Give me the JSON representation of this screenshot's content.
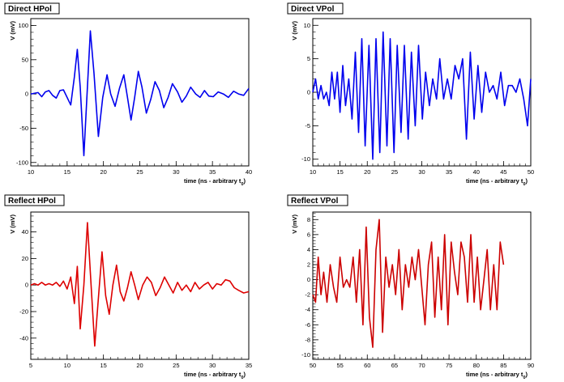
{
  "chart_data": [
    {
      "type": "line",
      "title": "Direct HPol",
      "xlabel": "time (ns - arbitrary t",
      "xlabel_sub": "0",
      "xlabel_close": ")",
      "ylabel": "V (mV)",
      "xlim": [
        10,
        40
      ],
      "ylim": [
        -105,
        110
      ],
      "xticks": [
        10,
        15,
        20,
        25,
        30,
        35,
        40
      ],
      "yticks": [
        -100,
        -50,
        0,
        50,
        100
      ],
      "color": "#0000ee",
      "series": [
        {
          "x": [
            10,
            11,
            11.5,
            12,
            12.5,
            13,
            13.5,
            14,
            14.5,
            15,
            15.5,
            16,
            16.4,
            16.8,
            17.3,
            17.7,
            18.2,
            18.7,
            19.3,
            19.9,
            20.5,
            21.0,
            21.6,
            22.2,
            22.8,
            23.3,
            23.8,
            24.3,
            24.8,
            25.3,
            25.9,
            26.5,
            27.1,
            27.7,
            28.3,
            28.9,
            29.5,
            30.2,
            30.8,
            31.4,
            32.0,
            32.7,
            33.3,
            33.9,
            34.5,
            35.1,
            35.8,
            36.5,
            37.2,
            37.9,
            38.6,
            39.3,
            40
          ],
          "y": [
            0,
            2,
            -4,
            3,
            5,
            -2,
            -6,
            5,
            6,
            -5,
            -16,
            25,
            65,
            10,
            -90,
            -10,
            92,
            30,
            -62,
            -5,
            28,
            0,
            -18,
            8,
            28,
            -5,
            -38,
            -5,
            33,
            10,
            -28,
            -8,
            18,
            5,
            -20,
            -5,
            15,
            3,
            -12,
            -3,
            10,
            0,
            -5,
            5,
            -3,
            -4,
            3,
            0,
            -5,
            4,
            0,
            -2,
            8
          ]
        }
      ]
    },
    {
      "type": "line",
      "title": "Direct VPol",
      "xlabel": "time (ns - arbitrary t",
      "xlabel_sub": "0",
      "xlabel_close": ")",
      "ylabel": "V (mV)",
      "xlim": [
        10,
        50
      ],
      "ylim": [
        -11,
        11
      ],
      "xticks": [
        10,
        15,
        20,
        25,
        30,
        35,
        40,
        45,
        50
      ],
      "yticks": [
        -10,
        -5,
        0,
        5,
        10
      ],
      "color": "#0000ee",
      "series": [
        {
          "x": [
            10,
            10.5,
            11,
            11.5,
            12,
            12.5,
            13,
            13.5,
            14,
            14.5,
            15,
            15.5,
            16,
            16.6,
            17.2,
            17.8,
            18.4,
            19.0,
            19.6,
            20.3,
            21.0,
            21.6,
            22.3,
            22.9,
            23.6,
            24.2,
            24.9,
            25.5,
            26.2,
            26.8,
            27.5,
            28.1,
            28.8,
            29.4,
            30.1,
            30.7,
            31.4,
            32.0,
            32.7,
            33.3,
            34.0,
            34.7,
            35.4,
            36.1,
            36.8,
            37.5,
            38.2,
            38.9,
            39.6,
            40.3,
            41.0,
            41.7,
            42.4,
            43.1,
            43.8,
            44.5,
            45.2,
            45.9,
            46.6,
            47.3,
            48.0,
            48.7,
            49.4,
            50
          ],
          "y": [
            0,
            2,
            -1,
            1,
            -1,
            0,
            -2,
            3,
            -1,
            3,
            -3,
            4,
            -2,
            2,
            -4,
            6,
            -6,
            8,
            -8,
            7,
            -10,
            8,
            -9,
            9,
            -8,
            8,
            -9,
            7,
            -6,
            7,
            -7,
            6,
            -5,
            7,
            -4,
            3,
            -2,
            2,
            -1,
            5,
            -1,
            2,
            -1,
            4,
            2,
            5,
            -7,
            6,
            -4,
            4,
            -3,
            3,
            0,
            1,
            -1,
            3,
            -2,
            1,
            1,
            0,
            2,
            -1,
            -5,
            2
          ]
        }
      ]
    },
    {
      "type": "line",
      "title": "Reflect HPol",
      "xlabel": "time (ns - arbitrary t",
      "xlabel_sub": "0",
      "xlabel_close": ")",
      "ylabel": "V (mV)",
      "xlim": [
        5,
        35
      ],
      "ylim": [
        -56,
        55
      ],
      "xticks": [
        5,
        10,
        15,
        20,
        25,
        30,
        35
      ],
      "yticks": [
        -40,
        -20,
        0,
        20,
        40
      ],
      "color": "#dd0000",
      "series": [
        {
          "x": [
            5,
            5.5,
            6,
            6.5,
            7,
            7.5,
            8,
            8.5,
            9,
            9.5,
            10,
            10.5,
            11.0,
            11.4,
            11.8,
            12.3,
            12.8,
            13.3,
            13.8,
            14.3,
            14.8,
            15.3,
            15.8,
            16.3,
            16.8,
            17.3,
            17.8,
            18.3,
            18.8,
            19.3,
            19.8,
            20.4,
            21.0,
            21.6,
            22.2,
            22.8,
            23.4,
            24.0,
            24.6,
            25.2,
            25.8,
            26.4,
            27.0,
            27.6,
            28.2,
            28.8,
            29.4,
            30.0,
            30.6,
            31.2,
            31.8,
            32.4,
            33.0,
            33.6,
            34.3,
            35
          ],
          "y": [
            0,
            1,
            0,
            2,
            0,
            1,
            0,
            2,
            -1,
            3,
            -3,
            6,
            -14,
            14,
            -33,
            0,
            47,
            0,
            -46,
            -10,
            25,
            -8,
            -22,
            0,
            15,
            -5,
            -12,
            -2,
            10,
            0,
            -11,
            0,
            6,
            2,
            -8,
            -2,
            6,
            0,
            -6,
            2,
            -4,
            0,
            -5,
            2,
            -3,
            0,
            2,
            -3,
            1,
            0,
            4,
            3,
            -2,
            -4,
            -6,
            -5
          ]
        }
      ]
    },
    {
      "type": "line",
      "title": "Reflect VPol",
      "xlabel": "time (ns - arbitrary t",
      "xlabel_sub": "0",
      "xlabel_close": ")",
      "ylabel": "V (mV)",
      "xlim": [
        50,
        90
      ],
      "ylim": [
        -10.6,
        9
      ],
      "xticks": [
        50,
        55,
        60,
        65,
        70,
        75,
        80,
        85,
        90
      ],
      "yticks": [
        -10,
        -8,
        -6,
        -4,
        -2,
        0,
        2,
        4,
        6,
        8
      ],
      "color": "#cc0000",
      "series": [
        {
          "x": [
            50,
            50.5,
            51.0,
            51.5,
            52.0,
            52.6,
            53.2,
            53.8,
            54.4,
            55.0,
            55.6,
            56.2,
            56.8,
            57.4,
            58.0,
            58.6,
            59.2,
            59.8,
            60.4,
            61.0,
            61.6,
            62.2,
            62.8,
            63.4,
            64.0,
            64.6,
            65.2,
            65.8,
            66.4,
            67.0,
            67.6,
            68.2,
            68.8,
            69.4,
            70.0,
            70.6,
            71.2,
            71.8,
            72.4,
            73.0,
            73.6,
            74.2,
            74.8,
            75.4,
            76.0,
            76.6,
            77.2,
            77.8,
            78.4,
            79.0,
            79.6,
            80.2,
            80.8,
            81.4,
            82.0,
            82.6,
            83.2,
            83.8,
            84.4,
            85.0
          ],
          "y": [
            -2,
            -3,
            3,
            -2,
            1,
            -3,
            2,
            -1,
            -3,
            3,
            -1,
            0,
            -1,
            3,
            -3,
            4,
            -6,
            7,
            -5,
            -9,
            4,
            8,
            -7,
            3,
            -1,
            2,
            -2,
            4,
            -4,
            2,
            -1,
            3,
            0,
            4,
            -1,
            -6,
            2,
            5,
            -5,
            3,
            -4,
            6,
            -6,
            5,
            1,
            -2,
            5,
            3,
            -3,
            6,
            -3,
            3,
            -4,
            0,
            4,
            -4,
            2,
            -4,
            5,
            2
          ]
        }
      ]
    }
  ]
}
